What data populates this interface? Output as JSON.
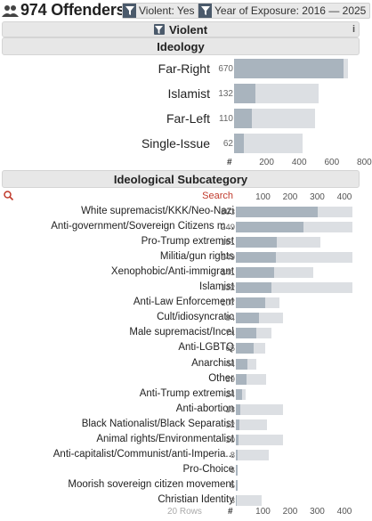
{
  "header": {
    "count_title": "974 Offenders",
    "filters": [
      {
        "label": "Violent: Yes"
      },
      {
        "label": "Year of Exposure: 2016 — 2025"
      }
    ]
  },
  "violent_section": {
    "title": "Violent",
    "info": "i"
  },
  "ideology": {
    "title": "Ideology",
    "hash": "#",
    "axis_ticks": [
      "200",
      "400",
      "600",
      "800"
    ],
    "items": [
      {
        "label": "Far-Right",
        "count": "670",
        "value": 670,
        "bg": 700
      },
      {
        "label": "Islamist",
        "count": "132",
        "value": 132,
        "bg": 520
      },
      {
        "label": "Far-Left",
        "count": "110",
        "value": 110,
        "bg": 495
      },
      {
        "label": "Single-Issue",
        "count": "62",
        "value": 62,
        "bg": 420
      }
    ]
  },
  "subcategory": {
    "title": "Ideological Subcategory",
    "search_label": "Search",
    "hash": "#",
    "axis_ticks": [
      "100",
      "200",
      "300",
      "400"
    ],
    "footer": "20 Rows",
    "items": [
      {
        "label": "White supremacist/KKK/Neo-Nazi",
        "count": "303",
        "value": 303,
        "bg": 430
      },
      {
        "label": "Anti-government/Sovereign Citizens m...",
        "count": "249",
        "value": 249,
        "bg": 430
      },
      {
        "label": "Pro-Trump extremist",
        "count": "151",
        "value": 151,
        "bg": 310
      },
      {
        "label": "Militia/gun rights",
        "count": "149",
        "value": 149,
        "bg": 430
      },
      {
        "label": "Xenophobic/Anti-immigrant",
        "count": "141",
        "value": 141,
        "bg": 285
      },
      {
        "label": "Islamist",
        "count": "132",
        "value": 132,
        "bg": 430
      },
      {
        "label": "Anti-Law Enforcement",
        "count": "107",
        "value": 107,
        "bg": 160
      },
      {
        "label": "Cult/idiosyncratic",
        "count": "84",
        "value": 84,
        "bg": 175
      },
      {
        "label": "Male supremacist/Incel",
        "count": "74",
        "value": 74,
        "bg": 130
      },
      {
        "label": "Anti-LGBTQ",
        "count": "65",
        "value": 65,
        "bg": 108
      },
      {
        "label": "Anarchist",
        "count": "44",
        "value": 44,
        "bg": 75
      },
      {
        "label": "Other",
        "count": "39",
        "value": 39,
        "bg": 110
      },
      {
        "label": "Anti-Trump extremist",
        "count": "24",
        "value": 24,
        "bg": 35
      },
      {
        "label": "Anti-abortion",
        "count": "18",
        "value": 18,
        "bg": 175
      },
      {
        "label": "Black Nationalist/Black Separatist",
        "count": "12",
        "value": 12,
        "bg": 115
      },
      {
        "label": "Animal rights/Environmentalist",
        "count": "10",
        "value": 10,
        "bg": 175
      },
      {
        "label": "Anti-capitalist/Communist/anti-Imperia...",
        "count": "8",
        "value": 8,
        "bg": 120
      },
      {
        "label": "Pro-Choice",
        "count": "6",
        "value": 6,
        "bg": 8
      },
      {
        "label": "Moorish sovereign citizen movement",
        "count": "5",
        "value": 5,
        "bg": 6
      },
      {
        "label": "Christian Identity",
        "count": "3",
        "value": 3,
        "bg": 95
      }
    ]
  },
  "colors": {
    "bar_fg": "#a9b4be",
    "bar_bg": "#dcdfe3",
    "search": "#c0392b",
    "funnel": "#4b5a6b"
  }
}
